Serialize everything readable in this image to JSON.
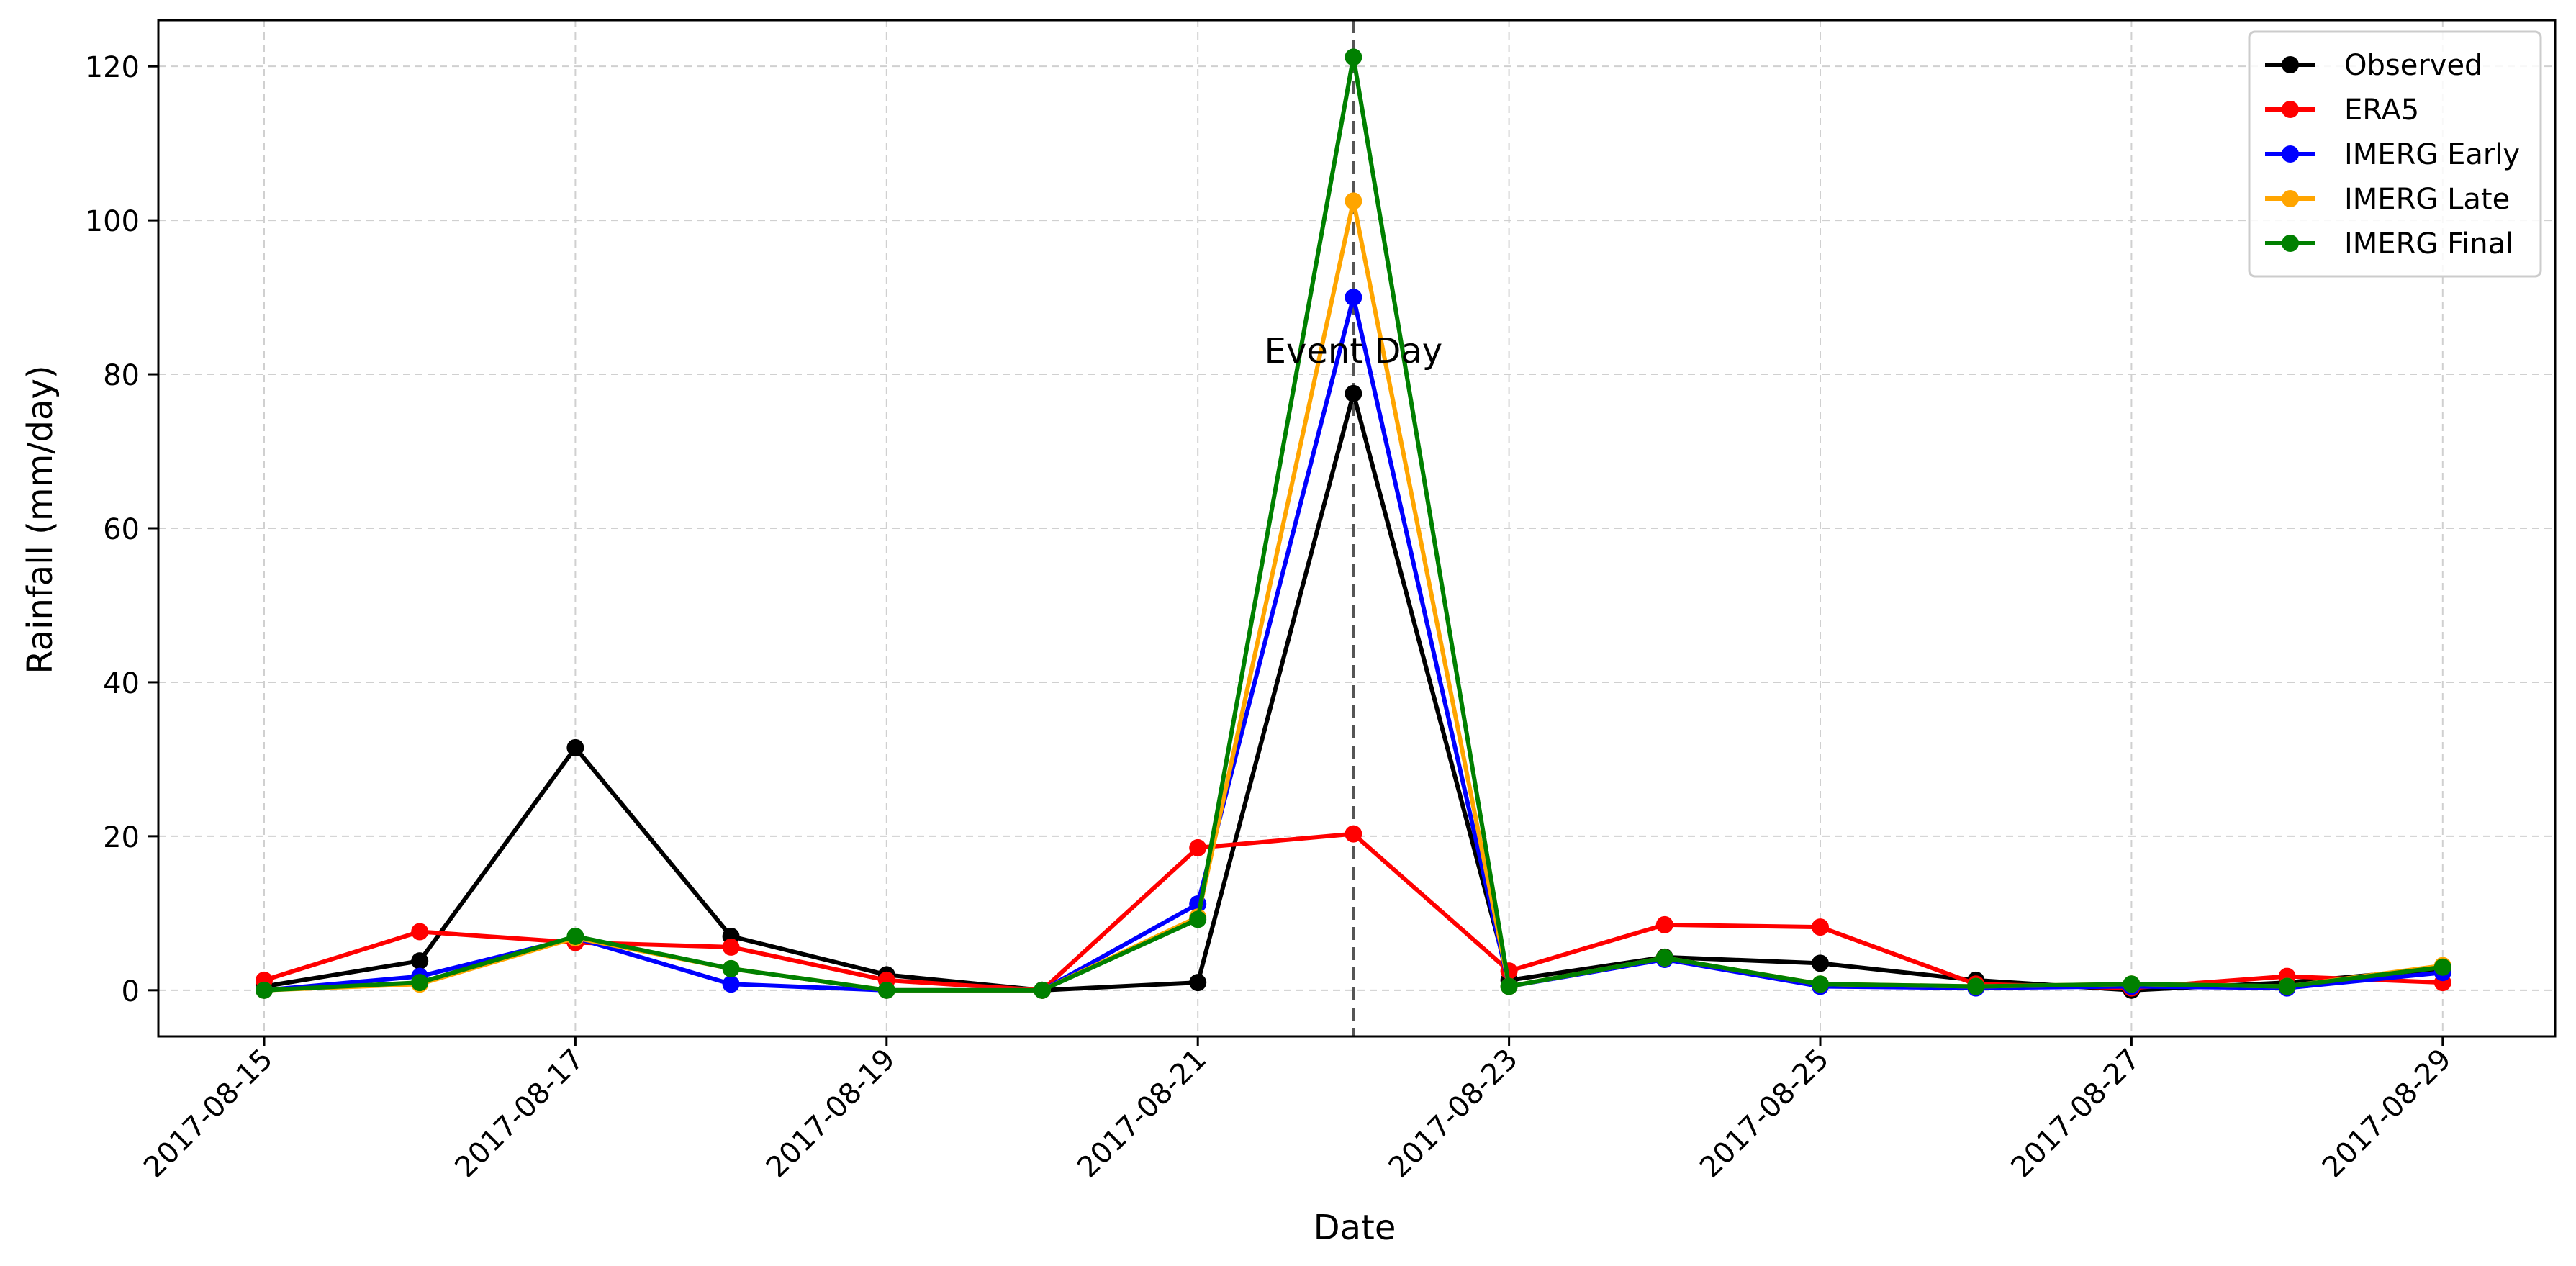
{
  "chart_data": {
    "type": "line",
    "xlabel": "Date",
    "ylabel": "Rainfall (mm/day)",
    "x": [
      "2017-08-15",
      "2017-08-16",
      "2017-08-17",
      "2017-08-18",
      "2017-08-19",
      "2017-08-20",
      "2017-08-21",
      "2017-08-22",
      "2017-08-23",
      "2017-08-24",
      "2017-08-25",
      "2017-08-26",
      "2017-08-27",
      "2017-08-28",
      "2017-08-29"
    ],
    "x_tick_labels": [
      "2017-08-15",
      "2017-08-17",
      "2017-08-19",
      "2017-08-21",
      "2017-08-23",
      "2017-08-25",
      "2017-08-27",
      "2017-08-29"
    ],
    "ylim": [
      -6,
      126
    ],
    "y_ticks": [
      0,
      20,
      40,
      60,
      80,
      100,
      120
    ],
    "grid": true,
    "legend_position": "top-right",
    "series": [
      {
        "name": "Observed",
        "color": "#000000",
        "values": [
          0.5,
          3.8,
          31.5,
          7.0,
          2.0,
          0.0,
          1.0,
          77.5,
          1.3,
          4.3,
          3.5,
          1.3,
          0.0,
          1.0,
          2.8
        ]
      },
      {
        "name": "ERA5",
        "color": "#ff0000",
        "values": [
          1.3,
          7.6,
          6.2,
          5.6,
          1.3,
          0.0,
          18.5,
          20.3,
          2.5,
          8.5,
          8.2,
          0.8,
          0.3,
          1.8,
          1.0
        ]
      },
      {
        "name": "IMERG Early",
        "color": "#0000ff",
        "values": [
          0.0,
          1.8,
          6.8,
          0.8,
          0.0,
          0.0,
          11.2,
          90.0,
          0.5,
          4.0,
          0.5,
          0.3,
          0.5,
          0.3,
          2.3
        ]
      },
      {
        "name": "IMERG Late",
        "color": "#ffa500",
        "values": [
          0.0,
          0.8,
          6.8,
          2.8,
          0.0,
          0.0,
          9.5,
          102.5,
          0.5,
          4.2,
          0.8,
          0.5,
          0.8,
          0.5,
          3.2
        ]
      },
      {
        "name": "IMERG Final",
        "color": "#008000",
        "values": [
          0.0,
          1.0,
          7.0,
          2.8,
          0.0,
          0.0,
          9.2,
          121.2,
          0.5,
          4.2,
          0.8,
          0.5,
          0.8,
          0.5,
          3.0
        ]
      }
    ],
    "annotations": [
      {
        "type": "vline",
        "x": "2017-08-22",
        "color": "#555555",
        "style": "dashed",
        "label": "Event Day",
        "label_y": 83
      }
    ]
  }
}
